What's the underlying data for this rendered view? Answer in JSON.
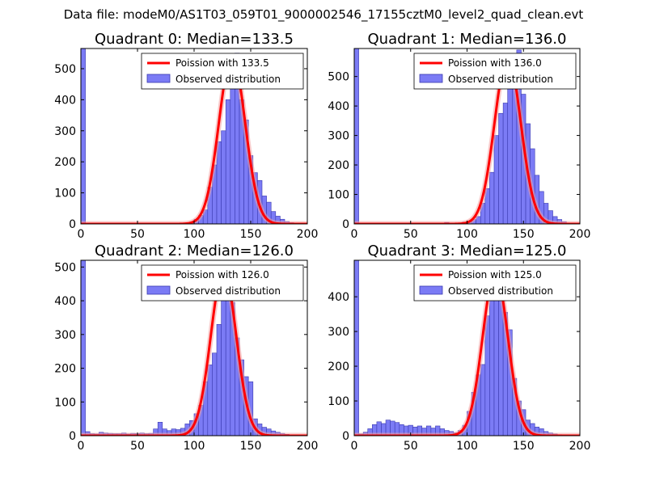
{
  "figure": {
    "suptitle": "Data file: modeM0/AS1T03_059T01_9000002546_17155cztM0_level2_quad_clean.evt",
    "colors": {
      "hist_fill": "#7b7bf5",
      "hist_edge": "#3a3ab0",
      "poisson_line": "#ff0000",
      "poisson_peak_glow": "#f4a0a0",
      "axes": "#000000"
    }
  },
  "chart_data": [
    {
      "type": "bar",
      "title": "Quadrant 0: Median=133.5",
      "xlabel": "",
      "ylabel": "",
      "xlim": [
        0,
        200
      ],
      "ylim": [
        0,
        565
      ],
      "xticks": [
        0,
        50,
        100,
        150,
        200
      ],
      "yticks": [
        0,
        100,
        200,
        300,
        400,
        500
      ],
      "legend": {
        "position": "top-right",
        "line_label": "Poission with 133.5",
        "bar_label": "Observed distribution"
      },
      "bin_width": 4,
      "bins": [
        [
          0,
          565
        ],
        [
          20,
          1
        ],
        [
          40,
          1
        ],
        [
          56,
          1
        ],
        [
          76,
          3
        ],
        [
          80,
          2
        ],
        [
          84,
          1
        ],
        [
          92,
          3
        ],
        [
          96,
          6
        ],
        [
          100,
          15
        ],
        [
          104,
          28
        ],
        [
          108,
          45
        ],
        [
          112,
          118
        ],
        [
          116,
          190
        ],
        [
          120,
          265
        ],
        [
          124,
          300
        ],
        [
          128,
          400
        ],
        [
          132,
          450
        ],
        [
          136,
          550
        ],
        [
          140,
          400
        ],
        [
          144,
          335
        ],
        [
          148,
          220
        ],
        [
          152,
          165
        ],
        [
          156,
          140
        ],
        [
          160,
          90
        ],
        [
          164,
          70
        ],
        [
          168,
          40
        ],
        [
          172,
          25
        ],
        [
          176,
          15
        ],
        [
          180,
          8
        ],
        [
          184,
          4
        ],
        [
          188,
          2
        ]
      ],
      "poisson": {
        "mean": 133.5,
        "peak": 540
      }
    },
    {
      "type": "bar",
      "title": "Quadrant 1: Median=136.0",
      "xlabel": "",
      "ylabel": "",
      "xlim": [
        0,
        200
      ],
      "ylim": [
        0,
        595
      ],
      "xticks": [
        0,
        50,
        100,
        150,
        200
      ],
      "yticks": [
        0,
        100,
        200,
        300,
        400,
        500
      ],
      "legend": {
        "position": "top-right",
        "line_label": "Poission with 136.0",
        "bar_label": "Observed distribution"
      },
      "bin_width": 4,
      "bins": [
        [
          0,
          595
        ],
        [
          40,
          1
        ],
        [
          60,
          2
        ],
        [
          80,
          5
        ],
        [
          96,
          6
        ],
        [
          100,
          10
        ],
        [
          104,
          15
        ],
        [
          108,
          25
        ],
        [
          112,
          70
        ],
        [
          116,
          120
        ],
        [
          120,
          175
        ],
        [
          124,
          300
        ],
        [
          128,
          375
        ],
        [
          132,
          410
        ],
        [
          136,
          510
        ],
        [
          140,
          545
        ],
        [
          144,
          590
        ],
        [
          148,
          440
        ],
        [
          152,
          340
        ],
        [
          156,
          255
        ],
        [
          160,
          165
        ],
        [
          164,
          110
        ],
        [
          168,
          70
        ],
        [
          172,
          45
        ],
        [
          176,
          25
        ],
        [
          180,
          15
        ],
        [
          184,
          8
        ],
        [
          188,
          3
        ]
      ],
      "poisson": {
        "mean": 136.0,
        "peak": 565
      }
    },
    {
      "type": "bar",
      "title": "Quadrant 2: Median=126.0",
      "xlabel": "",
      "ylabel": "",
      "xlim": [
        0,
        200
      ],
      "ylim": [
        0,
        520
      ],
      "xticks": [
        0,
        50,
        100,
        150,
        200
      ],
      "yticks": [
        0,
        100,
        200,
        300,
        400,
        500
      ],
      "legend": {
        "position": "top-right",
        "line_label": "Poission with 126.0",
        "bar_label": "Observed distribution"
      },
      "bin_width": 4,
      "bins": [
        [
          0,
          520
        ],
        [
          4,
          12
        ],
        [
          8,
          6
        ],
        [
          12,
          5
        ],
        [
          16,
          10
        ],
        [
          20,
          8
        ],
        [
          24,
          7
        ],
        [
          28,
          6
        ],
        [
          32,
          6
        ],
        [
          36,
          8
        ],
        [
          40,
          5
        ],
        [
          44,
          7
        ],
        [
          48,
          6
        ],
        [
          52,
          8
        ],
        [
          56,
          6
        ],
        [
          60,
          7
        ],
        [
          64,
          20
        ],
        [
          68,
          40
        ],
        [
          72,
          20
        ],
        [
          76,
          15
        ],
        [
          80,
          20
        ],
        [
          84,
          18
        ],
        [
          88,
          22
        ],
        [
          92,
          35
        ],
        [
          96,
          45
        ],
        [
          100,
          65
        ],
        [
          104,
          90
        ],
        [
          108,
          160
        ],
        [
          112,
          210
        ],
        [
          116,
          245
        ],
        [
          120,
          330
        ],
        [
          124,
          425
        ],
        [
          128,
          450
        ],
        [
          132,
          395
        ],
        [
          136,
          290
        ],
        [
          140,
          225
        ],
        [
          144,
          175
        ],
        [
          148,
          160
        ],
        [
          152,
          50
        ],
        [
          156,
          35
        ],
        [
          160,
          25
        ],
        [
          164,
          20
        ],
        [
          168,
          14
        ],
        [
          172,
          10
        ],
        [
          176,
          7
        ],
        [
          180,
          4
        ],
        [
          184,
          2
        ]
      ],
      "poisson": {
        "mean": 126.0,
        "peak": 490
      }
    },
    {
      "type": "bar",
      "title": "Quadrant 3: Median=125.0",
      "xlabel": "",
      "ylabel": "",
      "xlim": [
        0,
        200
      ],
      "ylim": [
        0,
        505
      ],
      "xticks": [
        0,
        50,
        100,
        150,
        200
      ],
      "yticks": [
        0,
        100,
        200,
        300,
        400
      ],
      "legend": {
        "position": "top-right",
        "line_label": "Poission with 125.0",
        "bar_label": "Observed distribution"
      },
      "bin_width": 4,
      "bins": [
        [
          0,
          505
        ],
        [
          4,
          5
        ],
        [
          8,
          10
        ],
        [
          12,
          20
        ],
        [
          16,
          32
        ],
        [
          20,
          40
        ],
        [
          24,
          35
        ],
        [
          28,
          45
        ],
        [
          32,
          42
        ],
        [
          36,
          38
        ],
        [
          40,
          32
        ],
        [
          44,
          28
        ],
        [
          48,
          30
        ],
        [
          52,
          25
        ],
        [
          56,
          28
        ],
        [
          60,
          22
        ],
        [
          64,
          28
        ],
        [
          68,
          22
        ],
        [
          72,
          28
        ],
        [
          76,
          20
        ],
        [
          80,
          15
        ],
        [
          84,
          12
        ],
        [
          88,
          8
        ],
        [
          92,
          15
        ],
        [
          96,
          30
        ],
        [
          100,
          70
        ],
        [
          104,
          125
        ],
        [
          108,
          175
        ],
        [
          112,
          205
        ],
        [
          116,
          345
        ],
        [
          120,
          415
        ],
        [
          124,
          470
        ],
        [
          128,
          450
        ],
        [
          132,
          355
        ],
        [
          136,
          305
        ],
        [
          140,
          165
        ],
        [
          144,
          100
        ],
        [
          148,
          75
        ],
        [
          152,
          45
        ],
        [
          156,
          35
        ],
        [
          160,
          25
        ],
        [
          164,
          20
        ],
        [
          168,
          12
        ],
        [
          172,
          8
        ],
        [
          176,
          5
        ],
        [
          180,
          3
        ]
      ],
      "poisson": {
        "mean": 125.0,
        "peak": 470
      }
    }
  ]
}
